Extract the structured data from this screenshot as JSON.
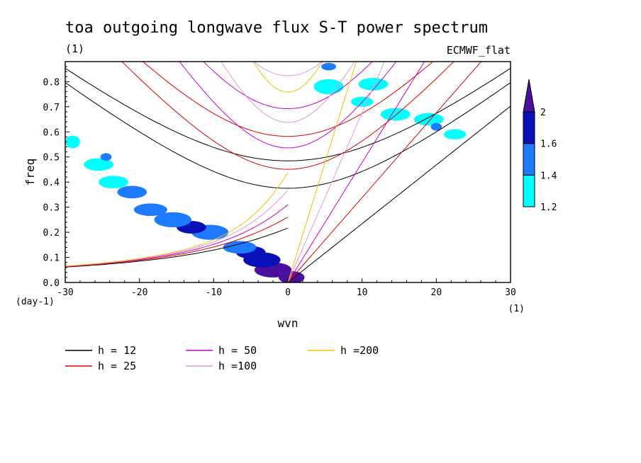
{
  "chart_data": {
    "type": "heatmap",
    "title": "toa outgoing longwave flux S-T power spectrum",
    "subtitle_left": "(1)",
    "subtitle_right": "ECMWF_flat",
    "xlabel": "wvn",
    "ylabel": "freq",
    "x_unit": "(1)",
    "y_unit": "(day-1)",
    "xlim": [
      -30,
      30
    ],
    "ylim": [
      0,
      0.88
    ],
    "x_ticks": [
      -30,
      -20,
      -10,
      0,
      10,
      20,
      30
    ],
    "x_tick_labels": [
      "-30",
      "-20",
      "-10",
      "0",
      "10",
      "20",
      "30"
    ],
    "y_ticks": [
      0.0,
      0.1,
      0.2,
      0.3,
      0.4,
      0.5,
      0.6,
      0.7,
      0.8
    ],
    "y_tick_labels": [
      "0.0",
      "0.1",
      "0.2",
      "0.3",
      "0.4",
      "0.5",
      "0.6",
      "0.7",
      "0.8"
    ],
    "colorbar": {
      "levels": [
        1.2,
        1.4,
        1.6,
        2
      ],
      "level_labels": [
        "1.2",
        "1.4",
        "1.6",
        "2"
      ],
      "colors": [
        "#00ffff",
        "#1e7bff",
        "#0a10b8",
        "#4b0f9f"
      ]
    },
    "contour_patches": [
      {
        "x": 0.5,
        "y": 0.02,
        "level": 4,
        "w": 3.5,
        "h": 0.05
      },
      {
        "x": -2.0,
        "y": 0.05,
        "level": 4,
        "w": 5.0,
        "h": 0.06
      },
      {
        "x": -3.5,
        "y": 0.09,
        "level": 3,
        "w": 5.0,
        "h": 0.06
      },
      {
        "x": -5.0,
        "y": 0.12,
        "level": 3,
        "w": 4.0,
        "h": 0.05
      },
      {
        "x": -6.5,
        "y": 0.14,
        "level": 2,
        "w": 4.5,
        "h": 0.05
      },
      {
        "x": -10.5,
        "y": 0.2,
        "level": 2,
        "w": 5.0,
        "h": 0.06
      },
      {
        "x": -13.0,
        "y": 0.22,
        "level": 3,
        "w": 4.0,
        "h": 0.05
      },
      {
        "x": -15.5,
        "y": 0.25,
        "level": 2,
        "w": 5.0,
        "h": 0.06
      },
      {
        "x": -18.5,
        "y": 0.29,
        "level": 2,
        "w": 4.5,
        "h": 0.05
      },
      {
        "x": -21.0,
        "y": 0.36,
        "level": 2,
        "w": 4.0,
        "h": 0.05
      },
      {
        "x": -23.5,
        "y": 0.4,
        "level": 1,
        "w": 4.0,
        "h": 0.05
      },
      {
        "x": -25.5,
        "y": 0.47,
        "level": 1,
        "w": 4.0,
        "h": 0.05
      },
      {
        "x": -24.5,
        "y": 0.5,
        "level": 2,
        "w": 1.5,
        "h": 0.03
      },
      {
        "x": -29.0,
        "y": 0.56,
        "level": 1,
        "w": 2.0,
        "h": 0.05
      },
      {
        "x": 5.5,
        "y": 0.78,
        "level": 1,
        "w": 4.0,
        "h": 0.06
      },
      {
        "x": 11.5,
        "y": 0.79,
        "level": 1,
        "w": 4.0,
        "h": 0.05
      },
      {
        "x": 14.5,
        "y": 0.67,
        "level": 1,
        "w": 4.0,
        "h": 0.05
      },
      {
        "x": 19.0,
        "y": 0.65,
        "level": 1,
        "w": 4.0,
        "h": 0.05
      },
      {
        "x": 20.0,
        "y": 0.62,
        "level": 2,
        "w": 1.5,
        "h": 0.03
      },
      {
        "x": 22.5,
        "y": 0.59,
        "level": 1,
        "w": 3.0,
        "h": 0.04
      },
      {
        "x": 5.5,
        "y": 0.86,
        "level": 2,
        "w": 2.0,
        "h": 0.03
      },
      {
        "x": 10.0,
        "y": 0.72,
        "level": 1,
        "w": 3.0,
        "h": 0.04
      }
    ],
    "series": [
      {
        "name": "h = 12",
        "h": 12,
        "color": "#000000"
      },
      {
        "name": "h = 25",
        "h": 25,
        "color": "#dd0000"
      },
      {
        "name": "h = 50",
        "h": 50,
        "color": "#cc00cc"
      },
      {
        "name": "h =100",
        "h": 100,
        "color": "#dd99dd"
      },
      {
        "name": "h =200",
        "h": 200,
        "color": "#f2c200"
      }
    ]
  }
}
